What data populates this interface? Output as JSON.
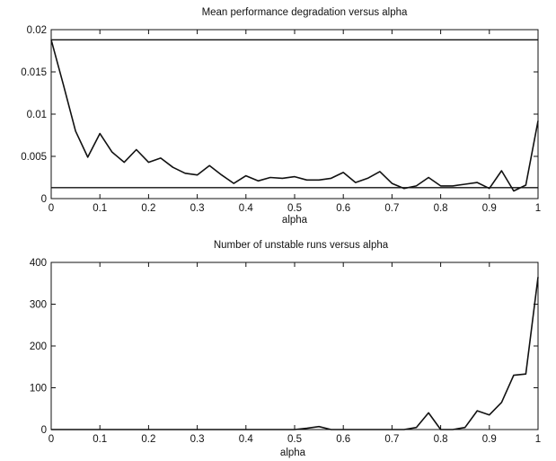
{
  "chart_data": [
    {
      "type": "line",
      "title": "Mean performance degradation versus alpha",
      "xlabel": "alpha",
      "ylabel": "",
      "xlim": [
        0,
        1
      ],
      "ylim": [
        0,
        0.02
      ],
      "x_ticks": [
        "0",
        "0.1",
        "0.2",
        "0.3",
        "0.4",
        "0.5",
        "0.6",
        "0.7",
        "0.8",
        "0.9",
        "1"
      ],
      "y_ticks": [
        "0",
        "0.005",
        "0.01",
        "0.015",
        "0.02"
      ],
      "grid": false,
      "series": [
        {
          "x": [
            0,
            0.025,
            0.05,
            0.075,
            0.1,
            0.125,
            0.15,
            0.175,
            0.2,
            0.225,
            0.25,
            0.275,
            0.3,
            0.325,
            0.35,
            0.375,
            0.4,
            0.425,
            0.45,
            0.475,
            0.5,
            0.525,
            0.55,
            0.575,
            0.6,
            0.625,
            0.65,
            0.675,
            0.7,
            0.725,
            0.75,
            0.775,
            0.8,
            0.825,
            0.85,
            0.875,
            0.9,
            0.925,
            0.95,
            0.975,
            1.0
          ],
          "values": [
            0.0188,
            0.0135,
            0.008,
            0.0049,
            0.0077,
            0.0055,
            0.0043,
            0.0058,
            0.0043,
            0.0048,
            0.0037,
            0.003,
            0.0028,
            0.0039,
            0.0028,
            0.0018,
            0.0027,
            0.0021,
            0.0025,
            0.0024,
            0.0026,
            0.0022,
            0.0022,
            0.0024,
            0.0031,
            0.0019,
            0.0024,
            0.0032,
            0.0018,
            0.0012,
            0.0015,
            0.0025,
            0.0015,
            0.0015,
            0.0017,
            0.0019,
            0.0012,
            0.0033,
            0.0009,
            0.0016,
            0.0092
          ]
        },
        {
          "x": [
            0,
            1
          ],
          "values": [
            0.0188,
            0.0188
          ]
        },
        {
          "x": [
            0,
            1
          ],
          "values": [
            0.0013,
            0.0013
          ]
        }
      ]
    },
    {
      "type": "line",
      "title": "Number of unstable runs versus alpha",
      "xlabel": "alpha",
      "ylabel": "",
      "xlim": [
        0,
        1
      ],
      "ylim": [
        0,
        400
      ],
      "x_ticks": [
        "0",
        "0.1",
        "0.2",
        "0.3",
        "0.4",
        "0.5",
        "0.6",
        "0.7",
        "0.8",
        "0.9",
        "1"
      ],
      "y_ticks": [
        "0",
        "100",
        "200",
        "300",
        "400"
      ],
      "grid": false,
      "series": [
        {
          "x": [
            0,
            0.5,
            0.525,
            0.55,
            0.575,
            0.6,
            0.7,
            0.725,
            0.75,
            0.775,
            0.8,
            0.825,
            0.85,
            0.875,
            0.9,
            0.925,
            0.95,
            0.975,
            1.0
          ],
          "values": [
            0,
            0,
            3,
            7,
            0,
            0,
            0,
            0,
            5,
            40,
            0,
            0,
            5,
            45,
            35,
            65,
            130,
            133,
            365
          ]
        }
      ]
    }
  ]
}
